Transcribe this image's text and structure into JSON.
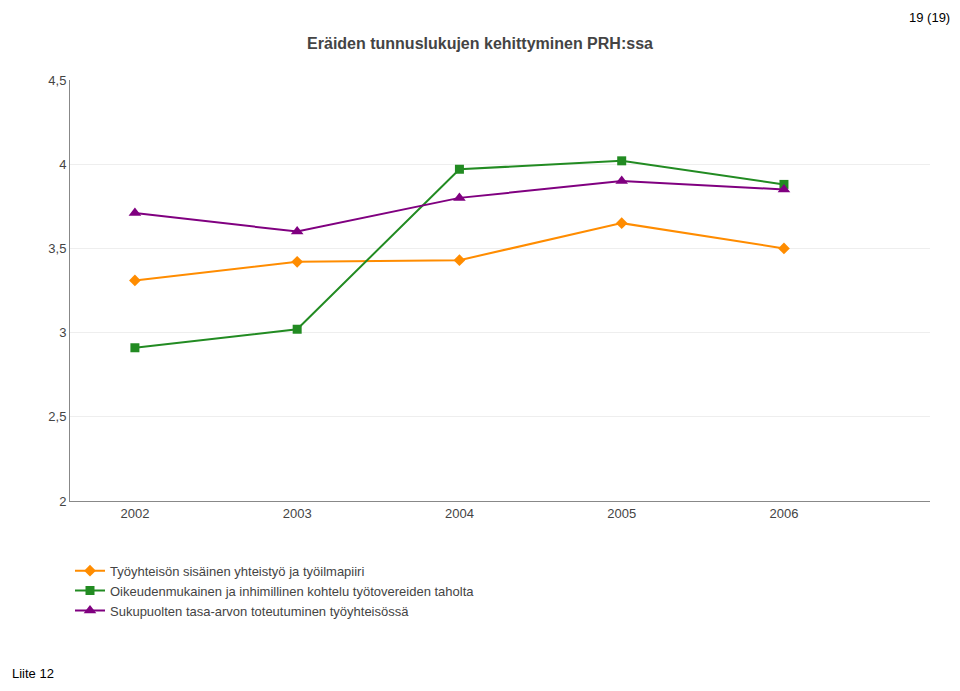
{
  "chart_data": {
    "type": "line",
    "title": "Eräiden tunnuslukujen kehittyminen PRH:ssa",
    "annotations": [
      "19 (19)",
      "Liite 12"
    ],
    "x": [
      2002,
      2003,
      2004,
      2005,
      2006
    ],
    "series": [
      {
        "name": "Työyhteisön sisäinen yhteistyö ja työilmapiiri",
        "color": "#FF8C00",
        "marker": "diamond",
        "values": [
          3.31,
          3.42,
          3.43,
          3.65,
          3.5
        ]
      },
      {
        "name": "Oikeudenmukainen ja inhimillinen kohtelu työtovereiden taholta",
        "color": "#228B22",
        "marker": "square",
        "values": [
          2.91,
          3.02,
          3.97,
          4.02,
          3.88
        ]
      },
      {
        "name": "Sukupuolten tasa-arvon toteutuminen työyhteisössä",
        "color": "#800080",
        "marker": "triangle-up",
        "values": [
          3.71,
          3.6,
          3.8,
          3.9,
          3.85
        ]
      }
    ],
    "xlim": [
      2001.6,
      2006.9
    ],
    "xticks": [
      2002,
      2003,
      2004,
      2005,
      2006
    ],
    "ylim": [
      2.0,
      4.5
    ],
    "yticks": [
      2,
      {
        "value": 2.5,
        "label": "2,5"
      },
      3,
      {
        "value": 3.5,
        "label": "3,5"
      },
      4,
      {
        "value": 4.5,
        "label": "4,5"
      }
    ],
    "grid": true,
    "legend": "bottom"
  }
}
